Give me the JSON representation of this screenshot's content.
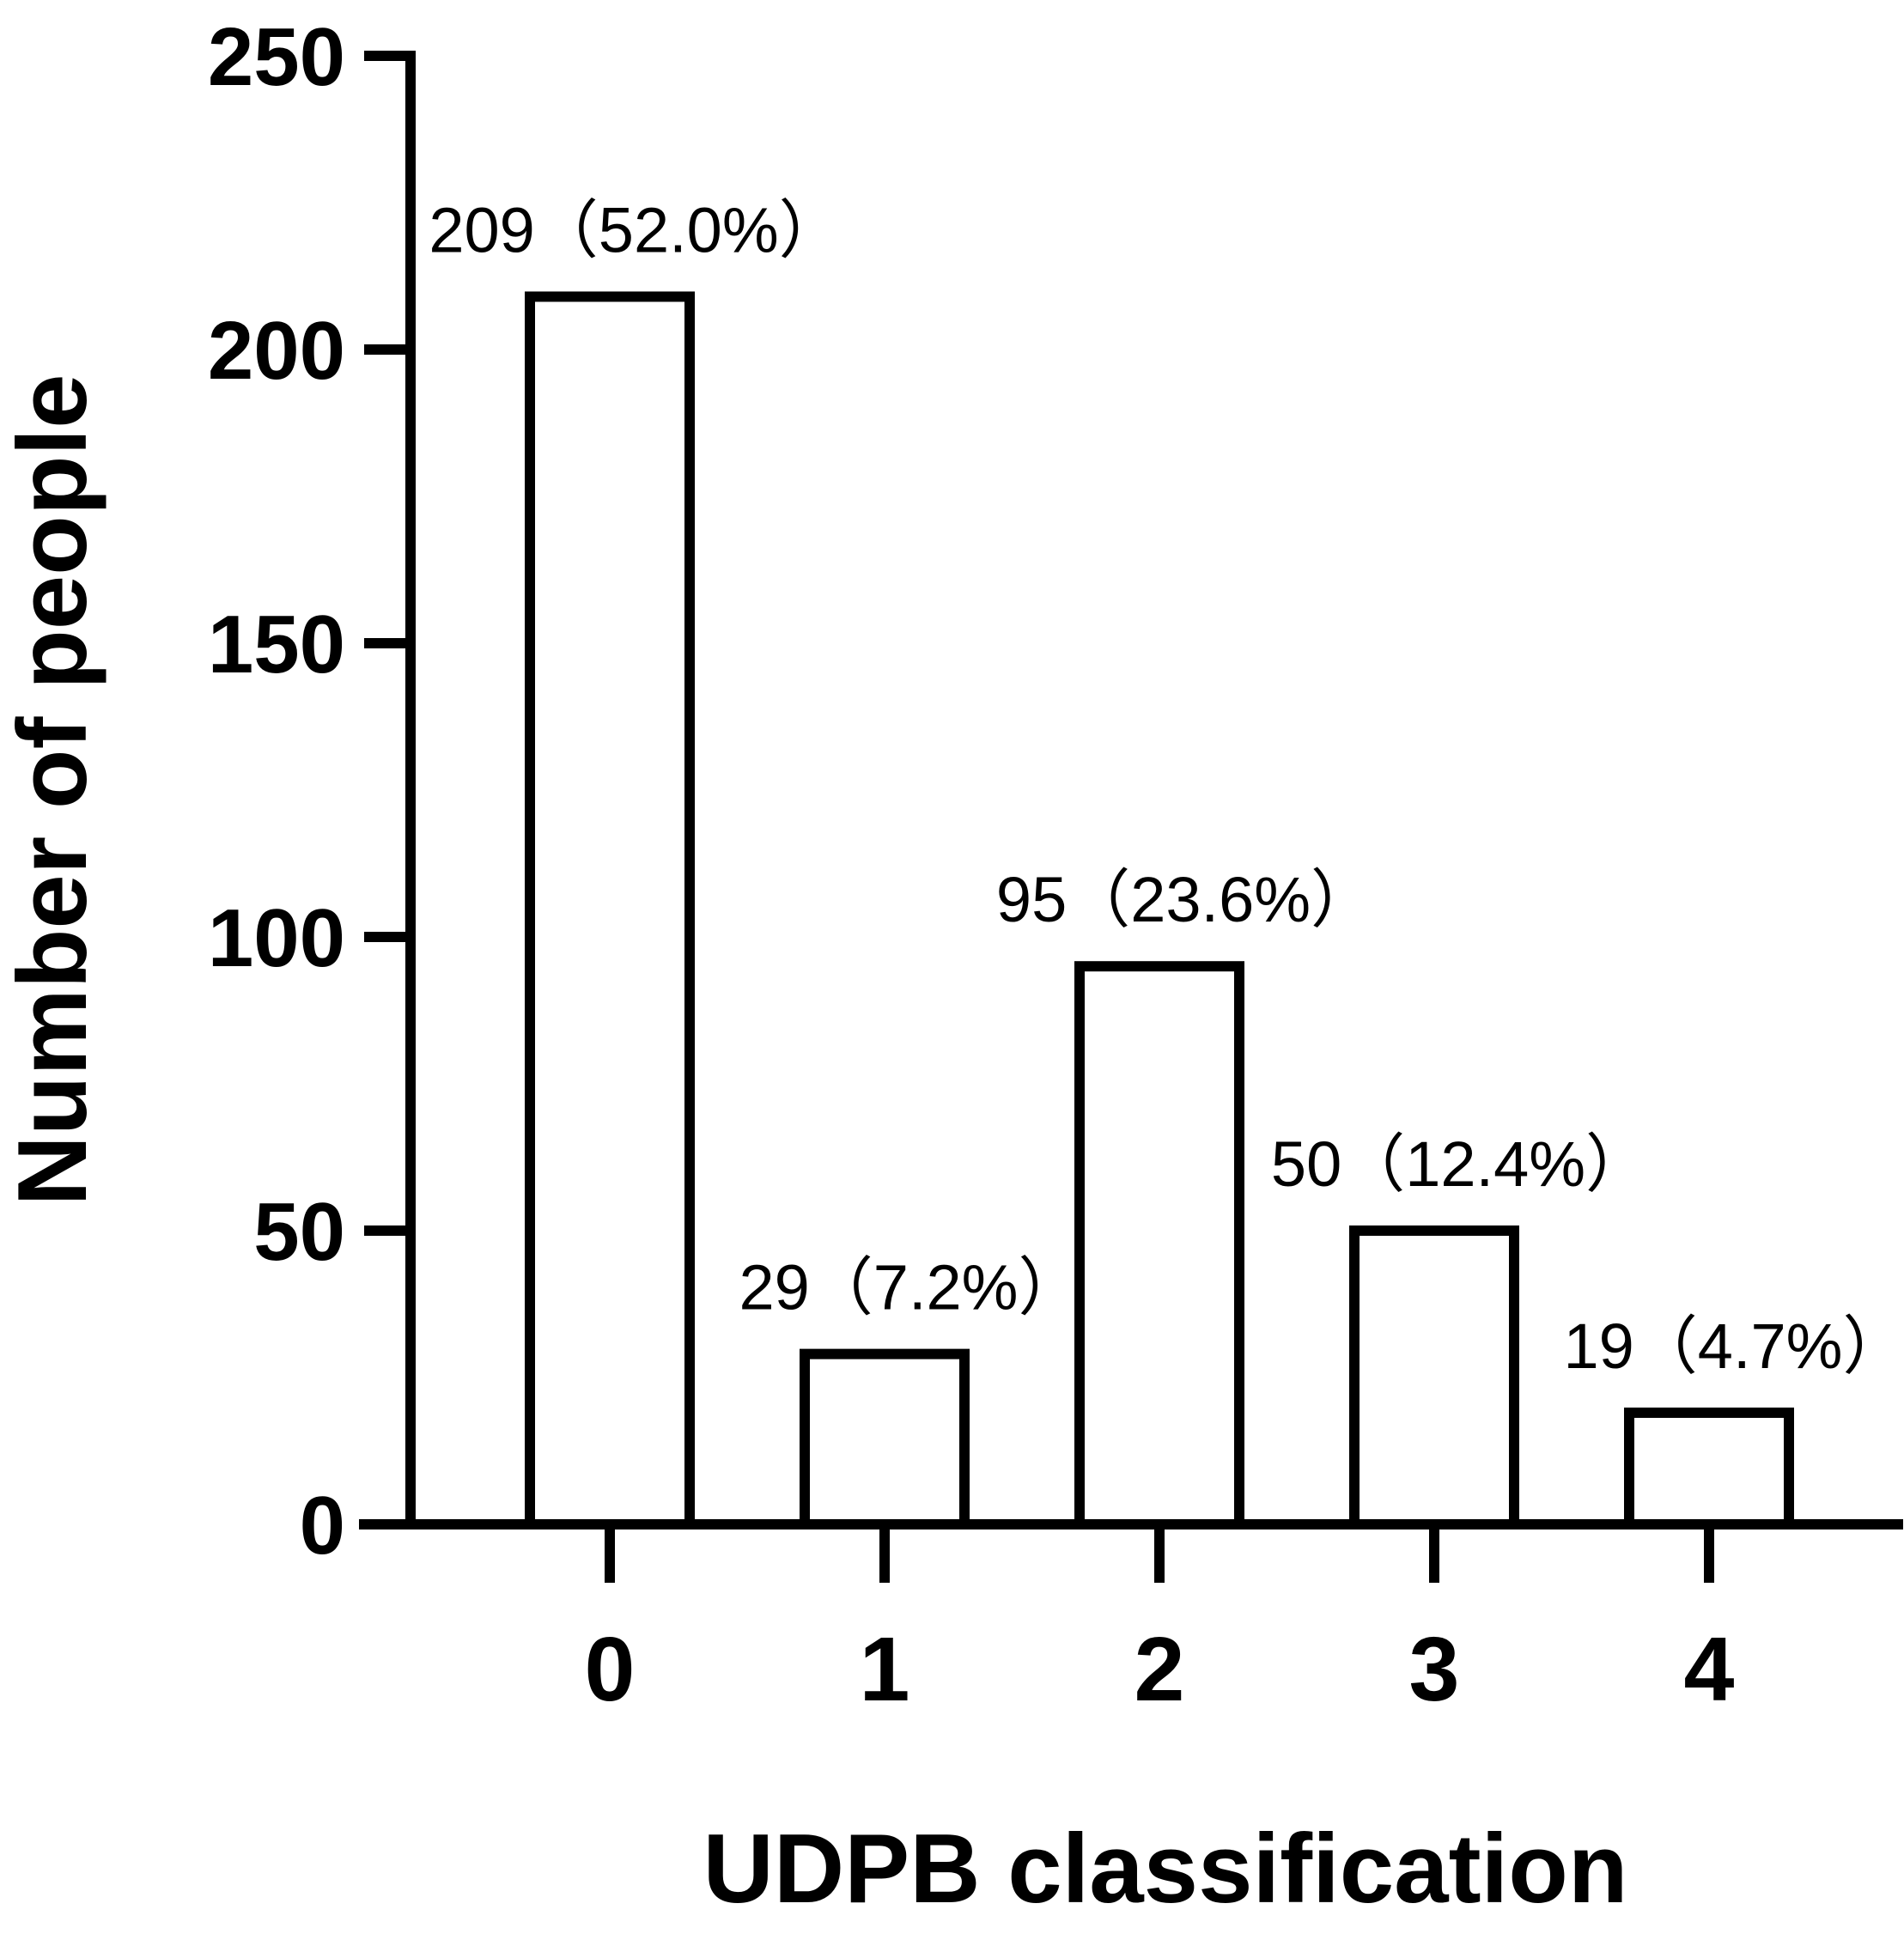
{
  "chart_data": {
    "type": "bar",
    "title": "",
    "xlabel": "UDPB classification",
    "ylabel": "Number of people",
    "categories": [
      "0",
      "1",
      "2",
      "3",
      "4"
    ],
    "values": [
      209,
      29,
      95,
      50,
      19
    ],
    "data_labels": [
      "209（52.0%）",
      "29（7.2%）",
      "95（23.6%）",
      "50（12.4%）",
      "19（4.7%）"
    ],
    "ylim": [
      0,
      250
    ],
    "yticks": [
      "0",
      "50",
      "100",
      "150",
      "200",
      "250"
    ],
    "ytick_values": [
      0,
      50,
      100,
      150,
      200,
      250
    ],
    "grid": false,
    "legend": "none",
    "bar_fill": "#ffffff",
    "bar_stroke": "#000000"
  }
}
